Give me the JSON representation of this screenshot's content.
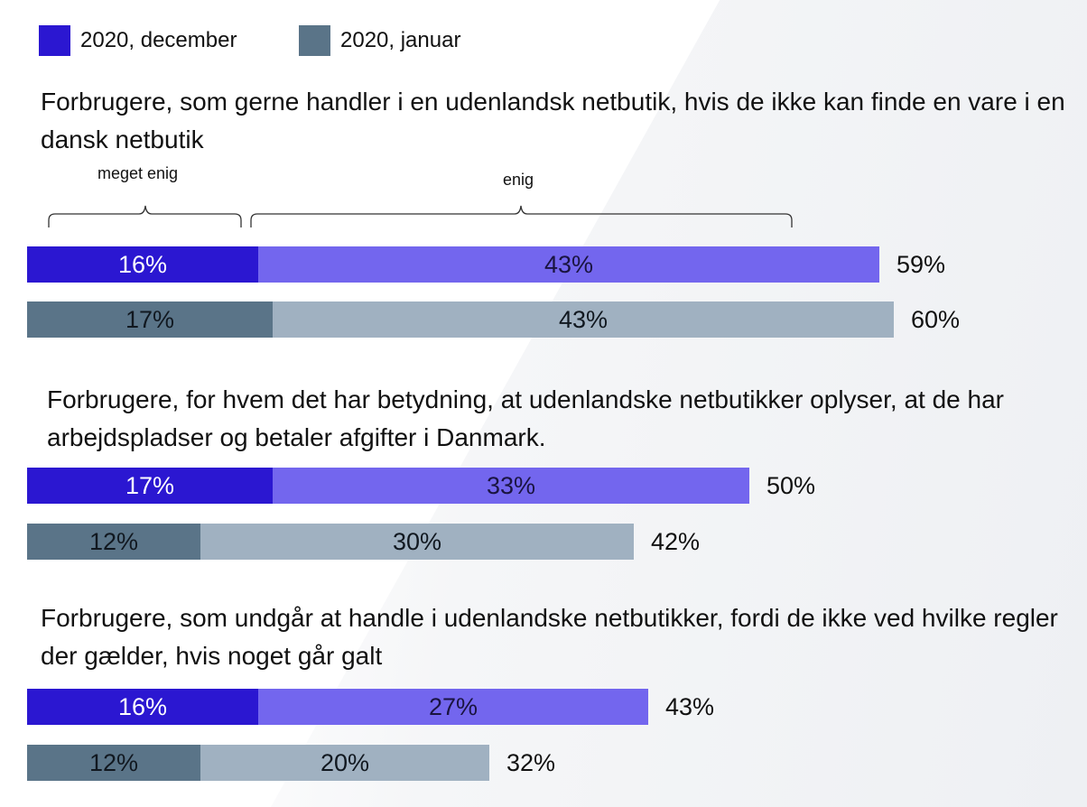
{
  "legend": [
    {
      "label": "2020, december",
      "color": "#2b17d1"
    },
    {
      "label": "2020, januar",
      "color": "#5a7488"
    }
  ],
  "annotations": {
    "strongly_agree": "meget enig",
    "agree": "enig"
  },
  "colors": {
    "december_strong": "#2b17d1",
    "december_agree": "#7366ee",
    "januar_strong": "#5a7488",
    "januar_agree": "#a0b1c1"
  },
  "chart_data": {
    "type": "bar",
    "orientation": "horizontal",
    "stacked": true,
    "xlim": [
      0,
      100
    ],
    "unit": "%",
    "stack_parts": [
      "meget enig",
      "enig"
    ],
    "series": [
      {
        "name": "2020, december"
      },
      {
        "name": "2020, januar"
      }
    ],
    "groups": [
      {
        "question": "Forbrugere, som gerne handler i en udenlandsk netbutik, hvis de ikke kan finde en vare i en dansk netbutik",
        "rows": [
          {
            "series": "2020, december",
            "strongly_agree": 16,
            "agree": 43,
            "total": 59,
            "strongly_agree_label": "16%",
            "agree_label": "43%",
            "total_label": "59%"
          },
          {
            "series": "2020, januar",
            "strongly_agree": 17,
            "agree": 43,
            "total": 60,
            "strongly_agree_label": "17%",
            "agree_label": "43%",
            "total_label": "60%"
          }
        ]
      },
      {
        "question": "Forbrugere, for hvem det har betydning, at udenlandske netbutikker oplyser, at de har arbejdspladser og betaler afgifter i Danmark.",
        "rows": [
          {
            "series": "2020, december",
            "strongly_agree": 17,
            "agree": 33,
            "total": 50,
            "strongly_agree_label": "17%",
            "agree_label": "33%",
            "total_label": "50%"
          },
          {
            "series": "2020, januar",
            "strongly_agree": 12,
            "agree": 30,
            "total": 42,
            "strongly_agree_label": "12%",
            "agree_label": "30%",
            "total_label": "42%"
          }
        ]
      },
      {
        "question": "Forbrugere, som undgår at handle i udenlandske netbutikker, fordi de ikke ved hvilke regler der gælder, hvis noget går galt",
        "rows": [
          {
            "series": "2020, december",
            "strongly_agree": 16,
            "agree": 27,
            "total": 43,
            "strongly_agree_label": "16%",
            "agree_label": "27%",
            "total_label": "43%"
          },
          {
            "series": "2020, januar",
            "strongly_agree": 12,
            "agree": 20,
            "total": 32,
            "strongly_agree_label": "12%",
            "agree_label": "20%",
            "total_label": "32%"
          }
        ]
      }
    ]
  }
}
